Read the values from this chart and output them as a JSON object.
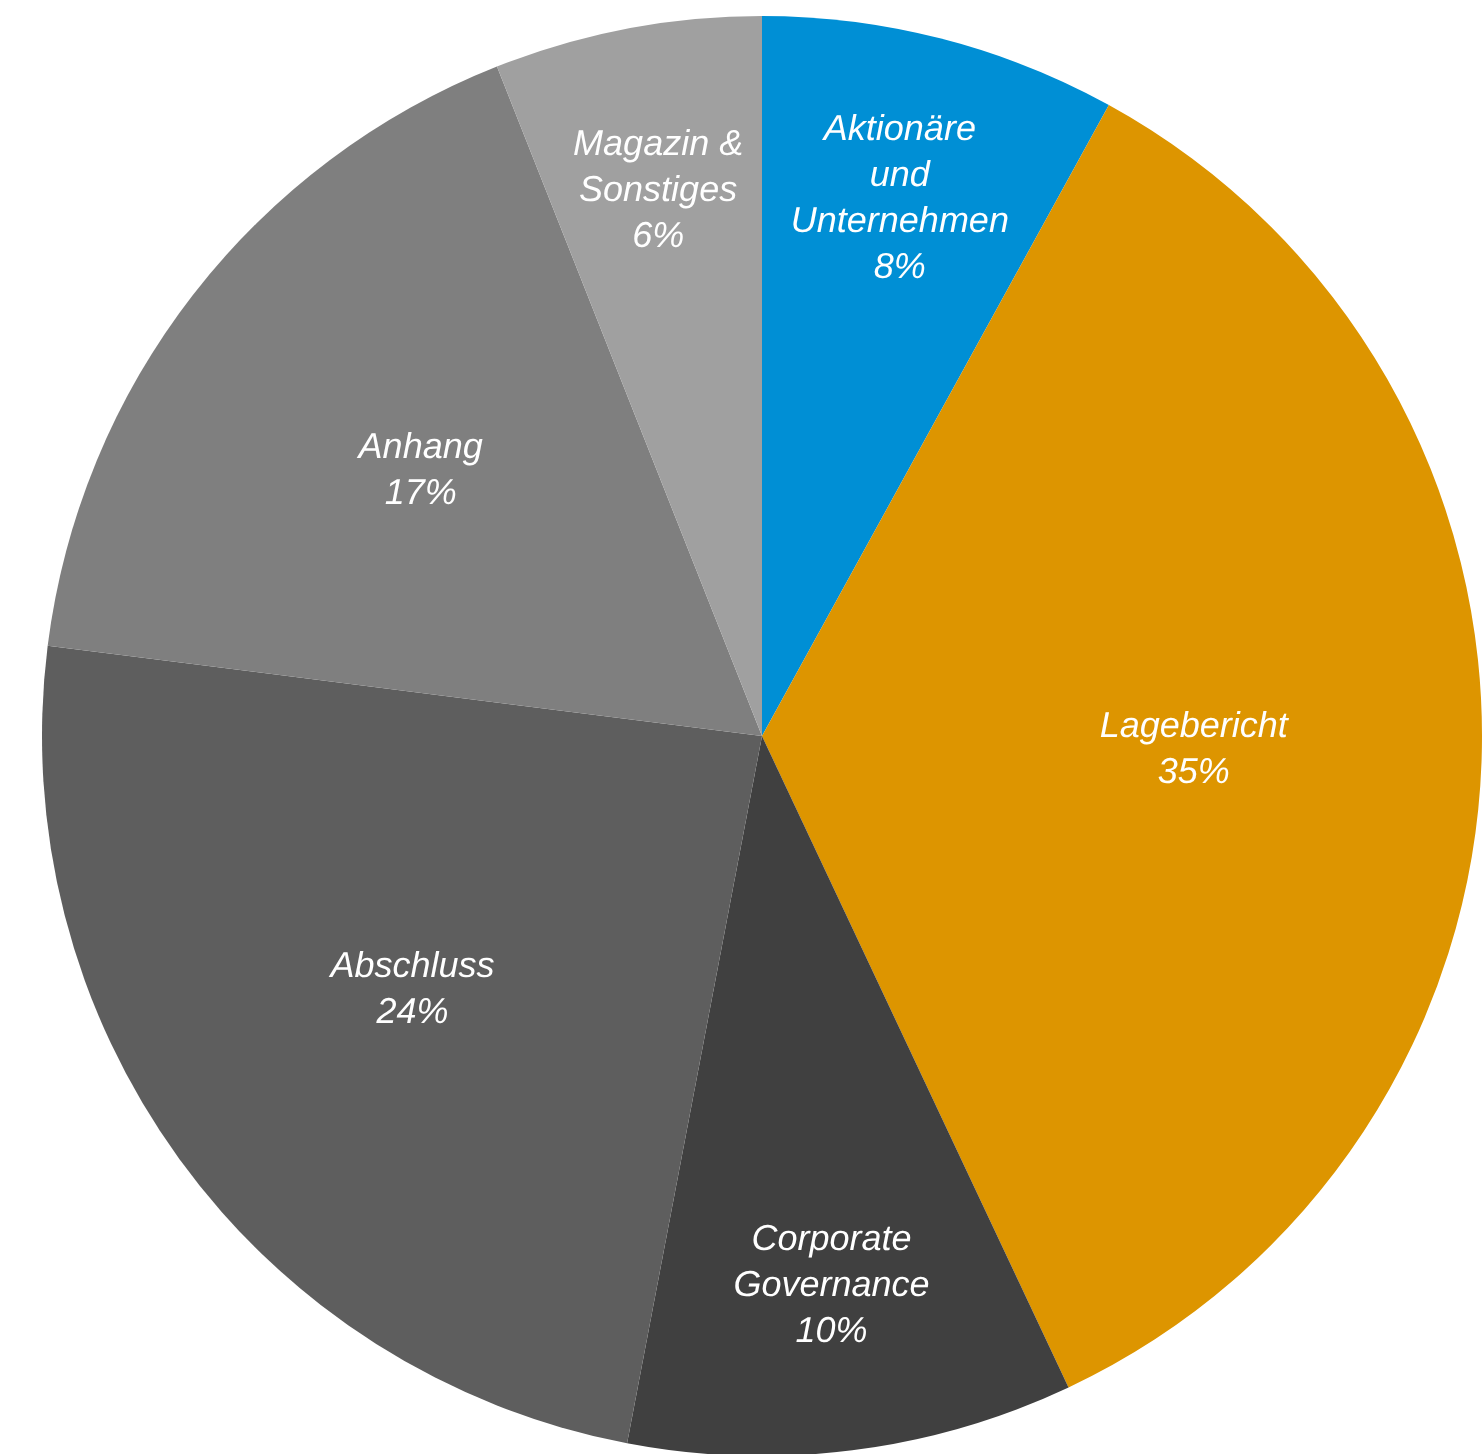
{
  "chart_data": {
    "type": "pie",
    "categories": [
      "Aktionäre und Unternehmen",
      "Lagebericht",
      "Corporate Governance",
      "Abschluss",
      "Anhang",
      "Magazin & Sonstiges"
    ],
    "values": [
      8,
      35,
      10,
      24,
      17,
      6
    ],
    "colors": [
      "#008fd5",
      "#dd9500",
      "#404040",
      "#5e5e5e",
      "#7f7f7f",
      "#a0a0a0"
    ],
    "value_labels": [
      "8%",
      "35%",
      "10%",
      "24%",
      "17%",
      "6%"
    ]
  }
}
